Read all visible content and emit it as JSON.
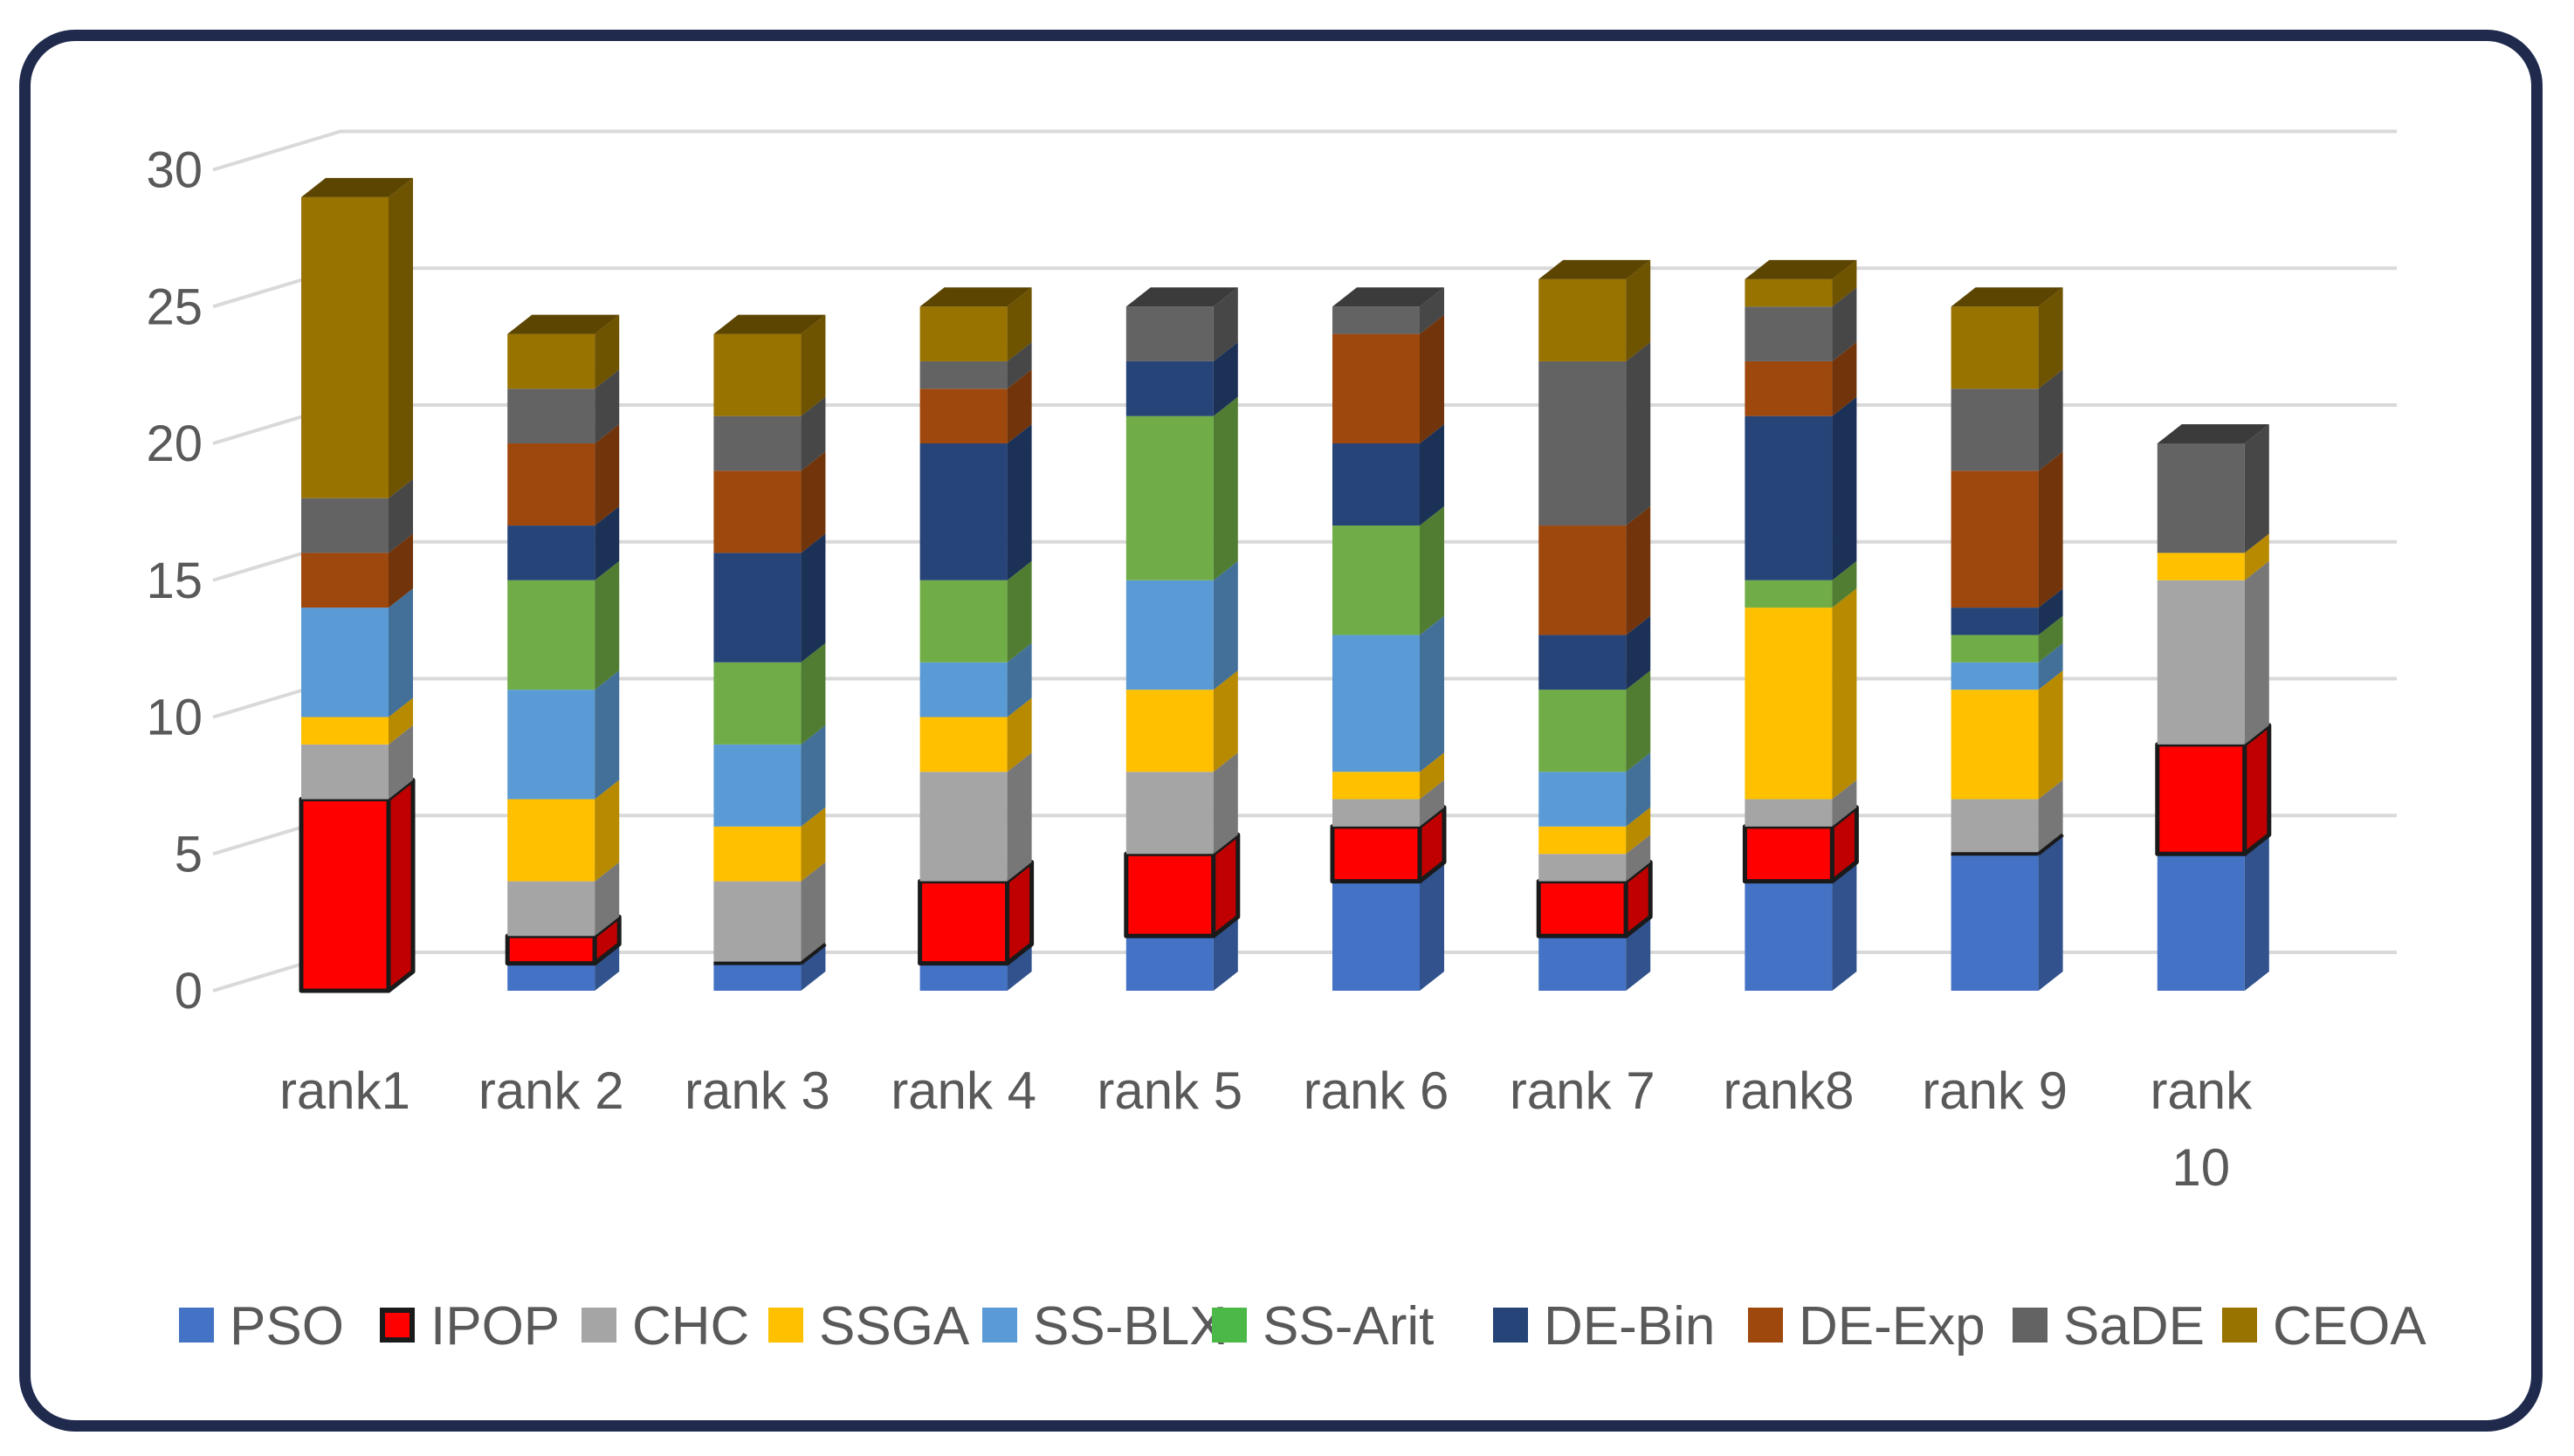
{
  "chart_data": {
    "type": "bar",
    "stacked": true,
    "style": "3d-column",
    "title": "",
    "xlabel": "",
    "ylabel": "",
    "ylim": [
      0,
      30
    ],
    "yticks": [
      "0",
      "5",
      "10",
      "15",
      "20",
      "25",
      "30"
    ],
    "grid": true,
    "legend_position": "bottom",
    "categories": [
      [
        "rank1"
      ],
      [
        "rank 2"
      ],
      [
        "rank 3"
      ],
      [
        "rank 4"
      ],
      [
        "rank 5"
      ],
      [
        "rank 6"
      ],
      [
        "rank 7"
      ],
      [
        "rank8"
      ],
      [
        "rank 9"
      ],
      [
        "rank",
        "10"
      ]
    ],
    "series": [
      {
        "name": "PSO",
        "color": "#4472c4",
        "values": [
          0,
          1,
          1,
          1,
          2,
          4,
          2,
          4,
          5,
          5
        ]
      },
      {
        "name": "IPOP",
        "color": "#ff0000",
        "highlight": true,
        "values": [
          7,
          1,
          0,
          3,
          3,
          2,
          2,
          2,
          0,
          4
        ]
      },
      {
        "name": "CHC",
        "color": "#a5a5a5",
        "values": [
          2,
          2,
          3,
          4,
          3,
          1,
          1,
          1,
          2,
          6
        ]
      },
      {
        "name": "SSGA",
        "color": "#ffc000",
        "values": [
          1,
          3,
          2,
          2,
          3,
          1,
          1,
          7,
          4,
          1
        ]
      },
      {
        "name": "SS-BLX",
        "color": "#5b9bd5",
        "values": [
          4,
          4,
          3,
          2,
          4,
          5,
          2,
          0,
          1,
          0
        ]
      },
      {
        "name": "SS-Arit",
        "color": "#70ad47",
        "legend_color": "#4cb848",
        "values": [
          0,
          4,
          3,
          3,
          6,
          4,
          3,
          1,
          1,
          0
        ]
      },
      {
        "name": "DE-Bin",
        "color": "#264478",
        "values": [
          0,
          2,
          4,
          5,
          2,
          3,
          2,
          6,
          1,
          0
        ]
      },
      {
        "name": "DE-Exp",
        "color": "#9e480e",
        "values": [
          2,
          3,
          3,
          2,
          0,
          4,
          4,
          2,
          5,
          0
        ]
      },
      {
        "name": "SaDE",
        "color": "#636363",
        "values": [
          2,
          2,
          2,
          1,
          2,
          1,
          6,
          2,
          3,
          4
        ]
      },
      {
        "name": "CEOA",
        "color": "#997300",
        "values": [
          11,
          2,
          3,
          2,
          0,
          0,
          3,
          1,
          3,
          0
        ]
      }
    ]
  }
}
